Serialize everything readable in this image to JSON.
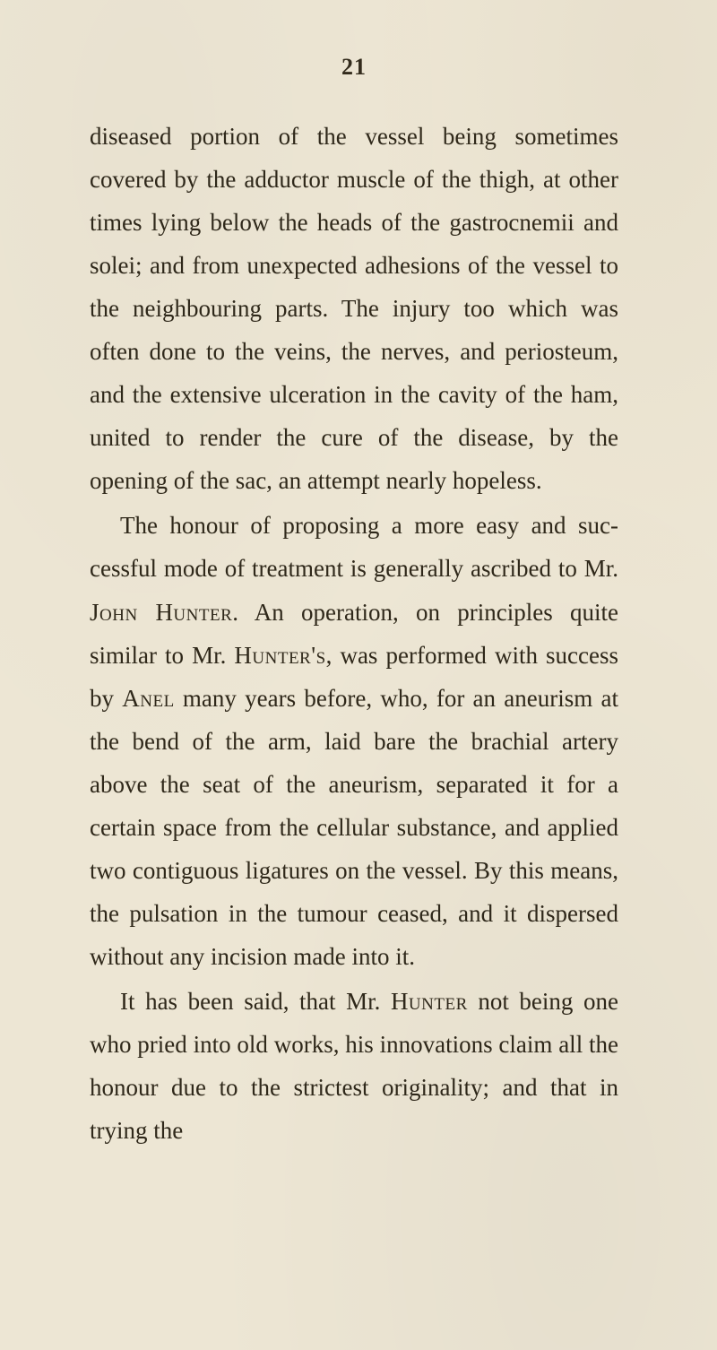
{
  "page": {
    "number": "21",
    "background_color": "#ede6d4",
    "text_color": "#2f281a",
    "body_font_size_pt": 20,
    "line_height": 1.78,
    "paragraphs": [
      "diseased portion of the vessel being sometimes covered by the adductor muscle of the thigh, at other times lying below the heads of the gastrocnemii and solei; and from unexpected adhesions of the vessel to the neighbouring parts. The injury too which was often done to the veins, the nerves, and periosteum, and the extensive ulceration in the cavity of the ham, united to render the cure of the disease, by the opening of the sac, an attempt nearly hopeless.",
      "The honour of proposing a more easy and suc­cessful mode of treatment is generally ascribed to Mr. John Hunter. An operation, on prin­ciples quite similar to Mr. Hunter's, was performed with success by Anel many years before, who, for an aneurism at the bend of the arm, laid bare the brachial artery above the seat of the aneurism, separated it for a certain space from the cellular substance, and applied two contiguous ligatures on the vessel. By this means, the pulsation in the tumour ceased, and it dispersed without any incision made into it.",
      "It has been said, that Mr. Hunter not being one who pried into old works, his in­novations claim all the honour due to the strictest originality; and that in trying the"
    ],
    "smallcaps_phrases": [
      "John Hunter",
      "Hunter's",
      "Anel",
      "Hunter"
    ]
  }
}
